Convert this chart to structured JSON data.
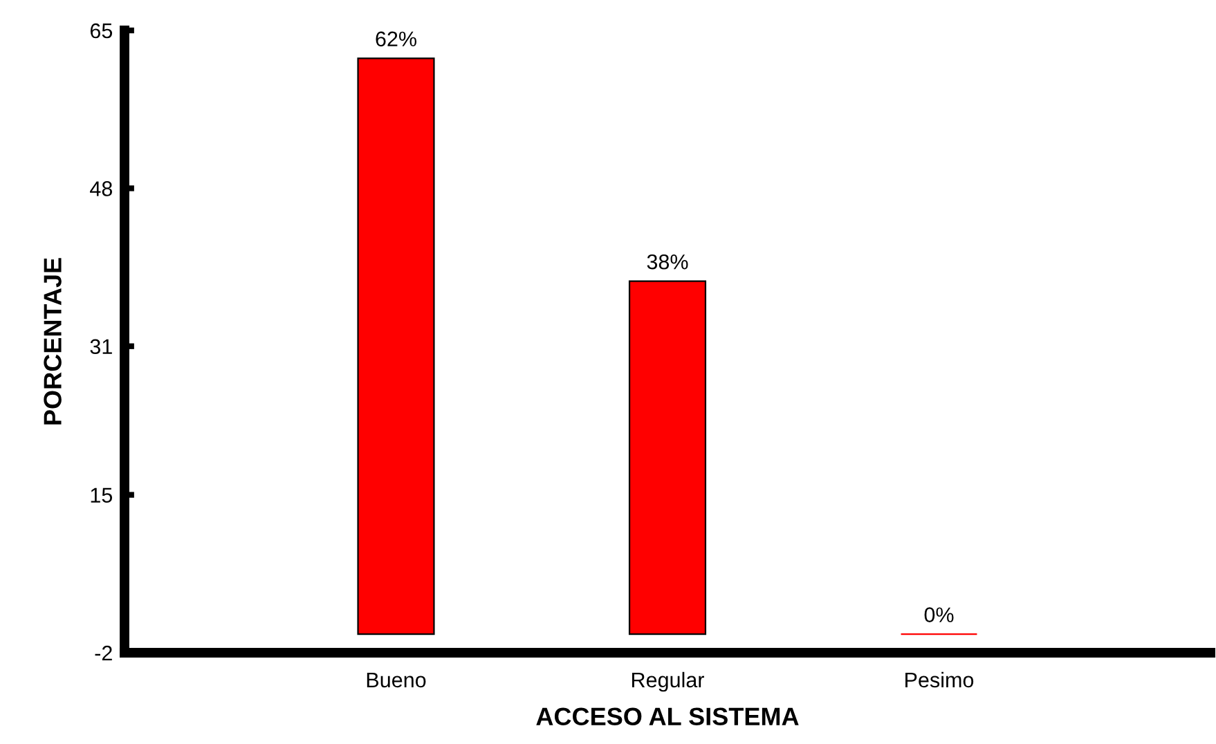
{
  "chart_data": {
    "type": "bar",
    "xlabel": "ACCESO AL SISTEMA",
    "ylabel": "PORCENTAJE",
    "categories": [
      "Bueno",
      "Regular",
      "Pesimo"
    ],
    "values": [
      62,
      38,
      0
    ],
    "color": "#ff0000",
    "value_labels": [
      "62%",
      "38%",
      "0%"
    ],
    "ylim": [
      -2,
      65
    ],
    "yticks": [
      -2,
      15,
      31,
      48,
      65
    ],
    "grid": false,
    "legend": false
  }
}
